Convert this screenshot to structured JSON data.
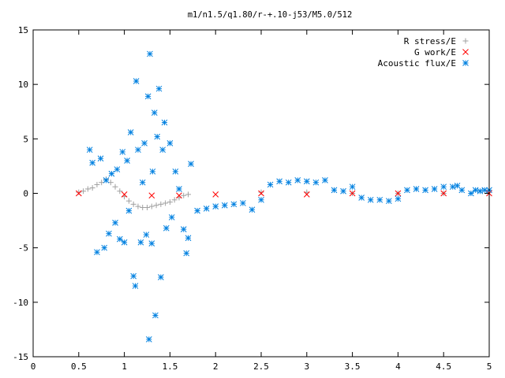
{
  "chart_data": {
    "type": "scatter",
    "title": "m1/n1.5/q1.80/r-+.10-j53/M5.0/512",
    "xlabel": "",
    "ylabel": "",
    "xlim": [
      0,
      5
    ],
    "ylim": [
      -15,
      15
    ],
    "x_ticks": [
      "0",
      "0.5",
      "1",
      "1.5",
      "2",
      "2.5",
      "3",
      "3.5",
      "4",
      "4.5",
      "5"
    ],
    "y_ticks": [
      "15",
      "10",
      "5",
      "0",
      "-5",
      "-10",
      "-15"
    ],
    "legend_position": "top-right",
    "grid": false,
    "series": [
      {
        "name": "R stress/E",
        "marker": "plus",
        "color": "#a0a0a0",
        "points": [
          [
            0.5,
            0.1
          ],
          [
            0.55,
            0.2
          ],
          [
            0.6,
            0.4
          ],
          [
            0.65,
            0.5
          ],
          [
            0.7,
            0.8
          ],
          [
            0.75,
            1.0
          ],
          [
            0.8,
            1.3
          ],
          [
            0.85,
            1.0
          ],
          [
            0.9,
            0.6
          ],
          [
            0.95,
            0.2
          ],
          [
            1.0,
            -0.3
          ],
          [
            1.05,
            -0.7
          ],
          [
            1.1,
            -1.0
          ],
          [
            1.15,
            -1.2
          ],
          [
            1.2,
            -1.3
          ],
          [
            1.25,
            -1.3
          ],
          [
            1.3,
            -1.2
          ],
          [
            1.35,
            -1.1
          ],
          [
            1.4,
            -1.0
          ],
          [
            1.45,
            -0.9
          ],
          [
            1.5,
            -0.8
          ],
          [
            1.55,
            -0.6
          ],
          [
            1.6,
            -0.4
          ],
          [
            1.65,
            -0.2
          ],
          [
            1.7,
            -0.1
          ],
          [
            2.5,
            0.1
          ],
          [
            3.0,
            0.1
          ],
          [
            3.5,
            0.0
          ],
          [
            4.0,
            0.0
          ],
          [
            4.5,
            0.0
          ]
        ]
      },
      {
        "name": "G work/E",
        "marker": "cross",
        "color": "#ff0000",
        "points": [
          [
            0.5,
            0.0
          ],
          [
            1.0,
            -0.1
          ],
          [
            1.3,
            -0.2
          ],
          [
            1.6,
            -0.2
          ],
          [
            2.0,
            -0.1
          ],
          [
            2.5,
            0.0
          ],
          [
            3.0,
            -0.1
          ],
          [
            3.5,
            0.0
          ],
          [
            4.0,
            0.0
          ],
          [
            4.5,
            0.0
          ],
          [
            5.0,
            0.0
          ]
        ]
      },
      {
        "name": "Acoustic flux/E",
        "marker": "star",
        "color": "#0080e0",
        "points": [
          [
            0.62,
            4.0
          ],
          [
            0.65,
            2.8
          ],
          [
            0.7,
            -5.4
          ],
          [
            0.74,
            3.2
          ],
          [
            0.78,
            -5.0
          ],
          [
            0.8,
            1.2
          ],
          [
            0.83,
            -3.7
          ],
          [
            0.86,
            1.8
          ],
          [
            0.9,
            -2.7
          ],
          [
            0.92,
            2.2
          ],
          [
            0.95,
            -4.2
          ],
          [
            0.98,
            3.8
          ],
          [
            1.0,
            -4.5
          ],
          [
            1.03,
            3.0
          ],
          [
            1.05,
            -1.6
          ],
          [
            1.07,
            5.6
          ],
          [
            1.1,
            -7.6
          ],
          [
            1.12,
            -8.5
          ],
          [
            1.13,
            10.3
          ],
          [
            1.15,
            4.0
          ],
          [
            1.18,
            -4.5
          ],
          [
            1.2,
            1.0
          ],
          [
            1.22,
            4.6
          ],
          [
            1.24,
            -3.8
          ],
          [
            1.26,
            8.9
          ],
          [
            1.27,
            -13.4
          ],
          [
            1.28,
            12.8
          ],
          [
            1.3,
            -4.6
          ],
          [
            1.31,
            2.0
          ],
          [
            1.33,
            7.4
          ],
          [
            1.34,
            -11.2
          ],
          [
            1.36,
            5.2
          ],
          [
            1.38,
            9.6
          ],
          [
            1.4,
            -7.7
          ],
          [
            1.42,
            4.0
          ],
          [
            1.44,
            6.5
          ],
          [
            1.46,
            -3.2
          ],
          [
            1.5,
            4.6
          ],
          [
            1.52,
            -2.2
          ],
          [
            1.56,
            2.0
          ],
          [
            1.6,
            0.4
          ],
          [
            1.65,
            -3.3
          ],
          [
            1.68,
            -5.5
          ],
          [
            1.7,
            -4.1
          ],
          [
            1.73,
            2.7
          ],
          [
            1.8,
            -1.6
          ],
          [
            1.9,
            -1.4
          ],
          [
            2.0,
            -1.2
          ],
          [
            2.1,
            -1.1
          ],
          [
            2.2,
            -1.0
          ],
          [
            2.3,
            -0.9
          ],
          [
            2.4,
            -1.5
          ],
          [
            2.5,
            -0.6
          ],
          [
            2.6,
            0.8
          ],
          [
            2.7,
            1.1
          ],
          [
            2.8,
            1.0
          ],
          [
            2.9,
            1.2
          ],
          [
            3.0,
            1.1
          ],
          [
            3.1,
            1.0
          ],
          [
            3.2,
            1.2
          ],
          [
            3.3,
            0.3
          ],
          [
            3.4,
            0.2
          ],
          [
            3.5,
            0.6
          ],
          [
            3.6,
            -0.4
          ],
          [
            3.7,
            -0.6
          ],
          [
            3.8,
            -0.6
          ],
          [
            3.9,
            -0.7
          ],
          [
            4.0,
            -0.5
          ],
          [
            4.1,
            0.3
          ],
          [
            4.2,
            0.4
          ],
          [
            4.3,
            0.3
          ],
          [
            4.4,
            0.4
          ],
          [
            4.5,
            0.6
          ],
          [
            4.6,
            0.6
          ],
          [
            4.65,
            0.7
          ],
          [
            4.7,
            0.3
          ],
          [
            4.8,
            0.0
          ],
          [
            4.85,
            0.3
          ],
          [
            4.9,
            0.2
          ],
          [
            4.95,
            0.3
          ],
          [
            5.0,
            0.3
          ]
        ]
      }
    ]
  }
}
